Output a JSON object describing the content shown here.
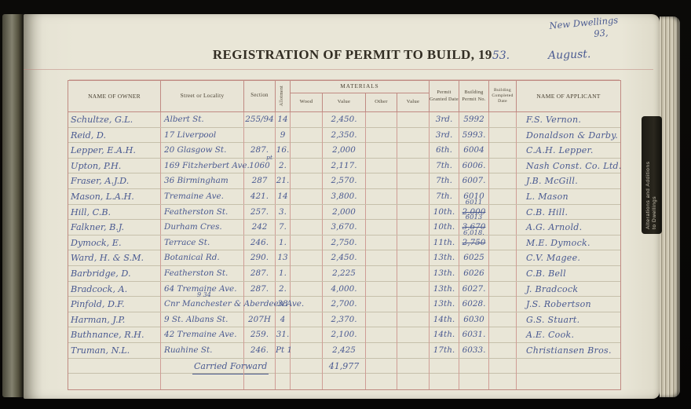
{
  "page": {
    "corner_note": [
      "New Dwellings",
      "93,"
    ],
    "title_printed": "REGISTRATION OF PERMIT TO BUILD, 19",
    "title_year": "53.",
    "month": "August.",
    "side_tab": [
      "Alterations and Additions",
      "to Dwellings"
    ]
  },
  "colors": {
    "ink": "#4a5a91",
    "rule_red": "#c08a82",
    "page": "#e9e6d7"
  },
  "table": {
    "headers": {
      "owner": "NAME OF OWNER",
      "street": "Street or Locality",
      "section": "Section",
      "allotment": "Allotment",
      "materials": "MATERIALS",
      "wood": "Wood",
      "value1": "Value",
      "other": "Other",
      "value2": "Value",
      "permit_date": "Permit Granted Date",
      "permit_no": "Building Permit No.",
      "completed": "Building Completed Date",
      "applicant": "NAME OF APPLICANT"
    },
    "rows": [
      {
        "owner": "Schultze, G.L.",
        "street": "Albert St.",
        "section": "255/94",
        "allot": "14",
        "value": "2,450.",
        "date": "3rd.",
        "permit": "5992",
        "applicant": "F.S. Vernon."
      },
      {
        "owner": "Reid, D.",
        "street": "17 Liverpool",
        "section": "",
        "allot": "9",
        "value": "2,350.",
        "date": "3rd.",
        "permit": "5993.",
        "applicant": "Donaldson & Darby."
      },
      {
        "owner": "Lepper, E.A.H.",
        "street": "20 Glasgow St.",
        "section": "287.",
        "allot": "16.",
        "value": "2,000",
        "date": "6th.",
        "permit": "6004",
        "applicant": "C.A.H. Lepper."
      },
      {
        "owner": "Upton, P.H.",
        "street": "169 Fitzherbert Ave.",
        "section": "1060",
        "section_note": "pt",
        "allot": "2.",
        "value": "2,117.",
        "date": "7th.",
        "permit": "6006.",
        "applicant": "Nash Const. Co. Ltd."
      },
      {
        "owner": "Fraser, A.J.D.",
        "street": "36 Birmingham",
        "section": "287",
        "allot": "21.",
        "value": "2,570.",
        "date": "7th.",
        "permit": "6007.",
        "applicant": "J.B. McGill."
      },
      {
        "owner": "Mason, L.A.H.",
        "street": "Tremaine Ave.",
        "section": "421.",
        "allot": "14",
        "value": "3,800.",
        "date": "7th.",
        "permit": "6010",
        "applicant": "L. Mason"
      },
      {
        "owner": "Hill, C.B.",
        "street": "Featherston St.",
        "section": "257.",
        "allot": "3.",
        "value": "2,000",
        "date": "10th.",
        "permit": "6011",
        "permit_struck": "2,000",
        "applicant": "C.B. Hill."
      },
      {
        "owner": "Falkner, B.J.",
        "street": "Durham Cres.",
        "section": "242",
        "allot": "7.",
        "value": "3,670.",
        "date": "10th.",
        "permit": "6013",
        "permit_struck": "3,670",
        "applicant": "A.G. Arnold."
      },
      {
        "owner": "Dymock, E.",
        "street": "Terrace St.",
        "section": "246.",
        "allot": "1.",
        "value": "2,750.",
        "date": "11th.",
        "permit": "6,018.",
        "permit_struck": "2,750",
        "applicant": "M.E. Dymock."
      },
      {
        "owner": "Ward, H. & S.M.",
        "street": "Botanical Rd.",
        "section": "290.",
        "allot": "13",
        "value": "2,450.",
        "date": "13th.",
        "permit": "6025",
        "applicant": "C.V. Magee."
      },
      {
        "owner": "Barbridge, D.",
        "street": "Featherston St.",
        "section": "287.",
        "allot": "1.",
        "value": "2,225",
        "date": "13th.",
        "permit": "6026",
        "applicant": "C.B. Bell"
      },
      {
        "owner": "Bradcock, A.",
        "street": "64 Tremaine Ave.",
        "section": "287.",
        "allot": "2.",
        "value": "4,000.",
        "date": "13th.",
        "permit": "6027.",
        "applicant": "J. Bradcock"
      },
      {
        "owner": "Pinfold, D.F.",
        "street": "Cnr Manchester & Aberdeen Ave.",
        "street_note": "9 34",
        "section": "",
        "allot": "38",
        "value": "2,700.",
        "date": "13th.",
        "permit": "6028.",
        "applicant": "J.S. Robertson"
      },
      {
        "owner": "Harman, J.P.",
        "street": "9 St. Albans St.",
        "section": "207H",
        "allot": "4",
        "value": "2,370.",
        "date": "14th.",
        "permit": "6030",
        "applicant": "G.S. Stuart."
      },
      {
        "owner": "Buthnance, R.H.",
        "street": "42 Tremaine Ave.",
        "section": "259.",
        "allot": "31.",
        "value": "2,100.",
        "date": "14th.",
        "permit": "6031.",
        "applicant": "A.E. Cook."
      },
      {
        "owner": "Truman, N.L.",
        "street": "Ruahine St.",
        "section": "246.",
        "allot": "Pt 1",
        "value": "2,425",
        "date": "17th.",
        "permit": "6033.",
        "applicant": "Christiansen Bros."
      }
    ],
    "carried_forward": {
      "label": "Carried Forward",
      "value": "41,977"
    }
  }
}
